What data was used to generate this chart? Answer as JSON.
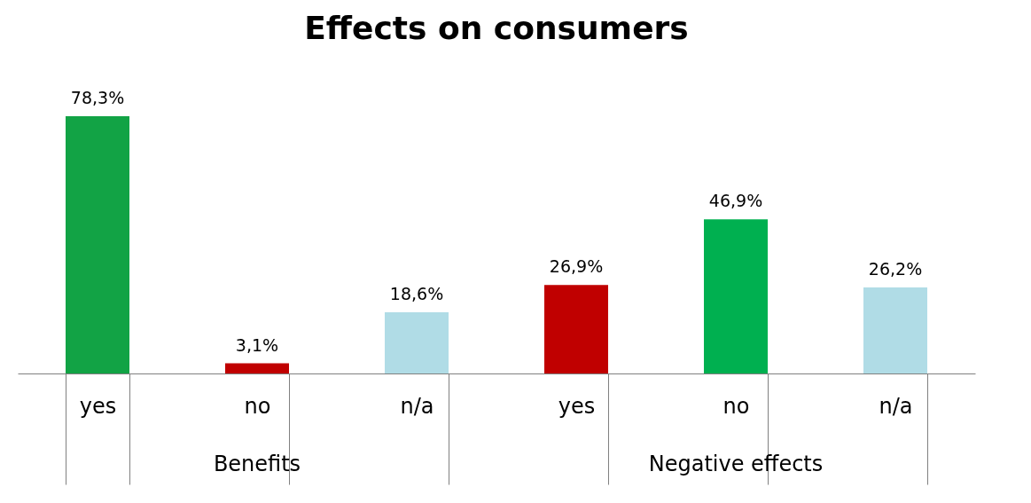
{
  "chart_data": {
    "type": "bar",
    "title": "Effects on consumers",
    "categories": [
      "yes",
      "no",
      "n/a",
      "yes",
      "no",
      "n/a"
    ],
    "values": [
      78.3,
      3.1,
      18.6,
      26.9,
      46.9,
      26.2
    ],
    "colors": [
      "#12a345",
      "#c00000",
      "#b0dce6",
      "#c00000",
      "#00b050",
      "#b0dce6"
    ],
    "value_labels": [
      "78,3%",
      "3,1%",
      "18,6%",
      "26,9%",
      "46,9%",
      "26,2%"
    ],
    "annotations": [
      "Benefits",
      "Negative effects"
    ],
    "grid": false
  }
}
